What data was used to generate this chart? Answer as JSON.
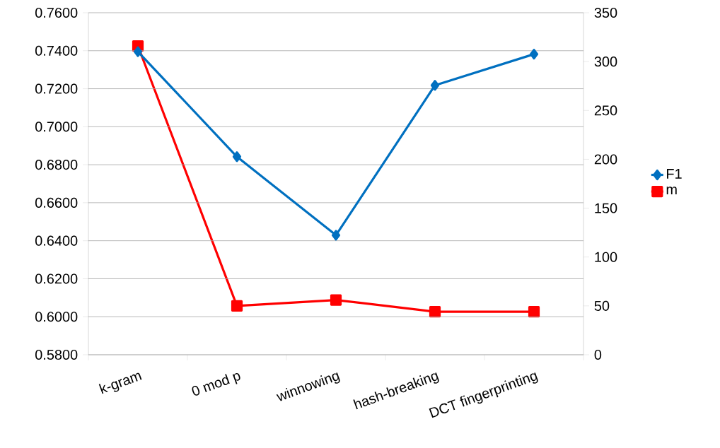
{
  "chart_data": {
    "type": "line",
    "categories": [
      "k-gram",
      "0 mod p",
      "winnowing",
      "hash-breaking",
      "DCT fingerprinting"
    ],
    "series": [
      {
        "name": "F1",
        "color": "#0070c0",
        "marker": "diamond",
        "values": [
          0.7395,
          0.6842,
          0.6429,
          0.7218,
          0.7382
        ]
      },
      {
        "name": "m",
        "color": "#ff0000",
        "marker": "square",
        "axis": "y2",
        "values": [
          316,
          50,
          56,
          44,
          44
        ]
      }
    ],
    "ylim": [
      0.58,
      0.76
    ],
    "yticks": [
      {
        "value": 0.58,
        "label": "0.5800"
      },
      {
        "value": 0.6,
        "label": "0.6000"
      },
      {
        "value": 0.62,
        "label": "0.6200"
      },
      {
        "value": 0.64,
        "label": "0.6400"
      },
      {
        "value": 0.66,
        "label": "0.6600"
      },
      {
        "value": 0.68,
        "label": "0.6800"
      },
      {
        "value": 0.7,
        "label": "0.7000"
      },
      {
        "value": 0.72,
        "label": "0.7200"
      },
      {
        "value": 0.74,
        "label": "0.7400"
      },
      {
        "value": 0.76,
        "label": "0.7600"
      }
    ],
    "y2lim": [
      0,
      350
    ],
    "y2ticks": [
      0,
      50,
      100,
      150,
      200,
      250,
      300,
      350
    ],
    "grid": "y",
    "legend": "right"
  }
}
